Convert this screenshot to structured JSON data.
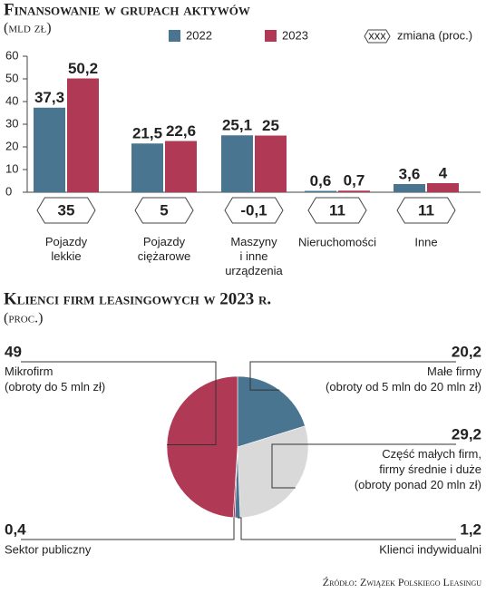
{
  "chart_data": [
    {
      "type": "bar",
      "title": "Finansowanie w grupach aktywów",
      "subtitle": "(mld zł)",
      "categories": [
        "Pojazdy\nlekkie",
        "Pojazdy\nciężarowe",
        "Maszyny\ni inne\nurządzenia",
        "Nieruchomości",
        "Inne"
      ],
      "series": [
        {
          "name": "2022",
          "color": "#4a7590",
          "values": [
            37.3,
            21.5,
            25.1,
            0.6,
            3.6
          ],
          "value_labels": [
            "37,3",
            "21,5",
            "25,1",
            "0,6",
            "3,6"
          ]
        },
        {
          "name": "2023",
          "color": "#b03a55",
          "values": [
            50.2,
            22.6,
            25,
            0.7,
            4
          ],
          "value_labels": [
            "50,2",
            "22,6",
            "25",
            "0,7",
            "4"
          ]
        }
      ],
      "changes": {
        "name": "zmiana (proc.)",
        "icon": "xxx",
        "values": [
          35,
          5,
          -0.1,
          11,
          11
        ],
        "value_labels": [
          "35",
          "5",
          "-0,1",
          "11",
          "11"
        ]
      },
      "ylim": [
        0,
        60
      ],
      "yticks": [
        0,
        10,
        20,
        30,
        40,
        50,
        60
      ],
      "grid": false
    },
    {
      "type": "pie",
      "title": "Klienci firm leasingowych w 2023 r.",
      "subtitle": "(proc.)",
      "categories": [
        "Małe firmy\n(obroty od 5 mln do 20 mln zł)",
        "Część małych firm,\nfirmy średnie i duże\n(obroty ponad 20 mln zł)",
        "Klienci indywidualni",
        "Sektor publiczny",
        "Mikrofirm\n(obroty do 5 mln zł)"
      ],
      "values": [
        20.2,
        29.2,
        1.2,
        0.4,
        49
      ],
      "value_labels": [
        "20,2",
        "29,2",
        "1,2",
        "0,4",
        "49"
      ],
      "colors": [
        "#4a7590",
        "#d9d9d9",
        "#4a7590",
        "#b03a55",
        "#b03a55"
      ],
      "source": "Źródło: Związek Polskiego Leasingu"
    }
  ]
}
